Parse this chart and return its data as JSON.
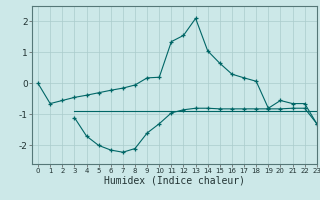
{
  "line1_x": [
    0,
    1,
    2,
    3,
    4,
    5,
    6,
    7,
    8,
    9,
    10,
    11,
    12,
    13,
    14,
    15,
    16,
    17,
    18,
    19,
    20,
    21,
    22,
    23
  ],
  "line1_y": [
    0.0,
    -0.65,
    -0.55,
    -0.45,
    -0.38,
    -0.3,
    -0.22,
    -0.15,
    -0.05,
    0.18,
    0.2,
    1.35,
    1.55,
    2.1,
    1.05,
    0.65,
    0.3,
    0.18,
    0.07,
    -0.8,
    -0.55,
    -0.65,
    -0.65,
    -1.3
  ],
  "line2_x": [
    3,
    4,
    5,
    6,
    7,
    8,
    9,
    10,
    11,
    12,
    13,
    14,
    15,
    16,
    17,
    18,
    19,
    20,
    21,
    22,
    23
  ],
  "line2_y": [
    -1.1,
    -1.7,
    -2.0,
    -2.15,
    -2.22,
    -2.1,
    -1.6,
    -1.3,
    -0.95,
    -0.85,
    -0.8,
    -0.8,
    -0.82,
    -0.82,
    -0.82,
    -0.82,
    -0.82,
    -0.82,
    -0.8,
    -0.8,
    -1.3
  ],
  "hline_x": [
    3,
    23
  ],
  "hline_y": [
    -0.88,
    -0.88
  ],
  "bg_color": "#cce8e8",
  "line_color": "#006666",
  "grid_color": "#aacccc",
  "xlabel": "Humidex (Indice chaleur)",
  "ylim": [
    -2.6,
    2.5
  ],
  "xlim": [
    -0.5,
    23
  ],
  "yticks": [
    -2,
    -1,
    0,
    1,
    2
  ],
  "xticks": [
    0,
    1,
    2,
    3,
    4,
    5,
    6,
    7,
    8,
    9,
    10,
    11,
    12,
    13,
    14,
    15,
    16,
    17,
    18,
    19,
    20,
    21,
    22,
    23
  ],
  "xlabel_fontsize": 7,
  "ytick_fontsize": 6.5,
  "xtick_fontsize": 5.0
}
